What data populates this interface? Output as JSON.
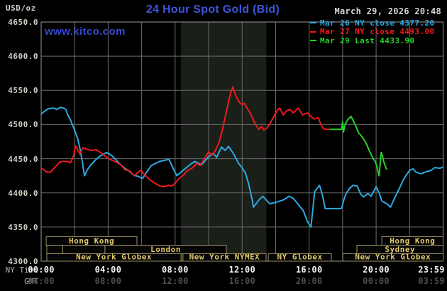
{
  "header": {
    "unit_label": "USD/oz",
    "title": "24 Hour Spot Gold (Bid)",
    "datetime": "March 29, 2026 20:48",
    "watermark": "www.kitco.com"
  },
  "axis_names": {
    "ny": "NY Time",
    "gmt": "GMT"
  },
  "legend": [
    {
      "label": "Mar 26 NY close 4377.20",
      "color": "#2da9e1"
    },
    {
      "label": "Mar 27 NY close 4493.00",
      "color": "#ef1a1a"
    },
    {
      "label": "Mar 29 Last 4433.90",
      "color": "#27d127"
    }
  ],
  "chart_data": {
    "type": "line",
    "title": "24 Hour Spot Gold (Bid)",
    "ylabel": "USD/oz",
    "ylim": [
      4300,
      4650
    ],
    "y_tick_step": 50,
    "y_ticks": [
      "4650.0",
      "4600.0",
      "4550.0",
      "4500.0",
      "4450.0",
      "4400.0",
      "4350.0",
      "4300.0"
    ],
    "x_hours_range": [
      0,
      24
    ],
    "x_ticks_hours": [
      0,
      4,
      8,
      12,
      16,
      20,
      23.983
    ],
    "ny_ticks": [
      "00:00",
      "04:00",
      "08:00",
      "12:00",
      "16:00",
      "20:00",
      "23:59"
    ],
    "gmt_ticks": [
      "04:00",
      "08:00",
      "12:00",
      "16:00",
      "20:00",
      "00:00",
      "03:59"
    ],
    "grid_step_hours": 2,
    "grid_on": true,
    "nymex_band_hours": [
      8.35,
      13.45
    ],
    "band_color": "#1a1f19",
    "grid_color": "#6b6b6b",
    "frame_color": "#9a9a9a",
    "series": [
      {
        "name": "Mar 26 NY close 4377.20",
        "color": "#2da9e1",
        "points": [
          [
            0,
            4515
          ],
          [
            0.17,
            4519
          ],
          [
            0.42,
            4523
          ],
          [
            0.76,
            4524
          ],
          [
            0.93,
            4522
          ],
          [
            1.14,
            4525
          ],
          [
            1.36,
            4524
          ],
          [
            1.48,
            4522
          ],
          [
            1.57,
            4515
          ],
          [
            1.78,
            4505
          ],
          [
            1.99,
            4492
          ],
          [
            2.2,
            4478
          ],
          [
            2.33,
            4463
          ],
          [
            2.46,
            4445
          ],
          [
            2.59,
            4425
          ],
          [
            2.76,
            4434
          ],
          [
            2.97,
            4441
          ],
          [
            3.2,
            4447
          ],
          [
            3.46,
            4453
          ],
          [
            3.9,
            4459
          ],
          [
            4.2,
            4455
          ],
          [
            4.49,
            4448
          ],
          [
            4.66,
            4443
          ],
          [
            5,
            4436
          ],
          [
            5.3,
            4431
          ],
          [
            5.51,
            4426
          ],
          [
            5.81,
            4424
          ],
          [
            6.06,
            4421
          ],
          [
            6.32,
            4431
          ],
          [
            6.57,
            4440
          ],
          [
            7.08,
            4446
          ],
          [
            7.63,
            4449
          ],
          [
            7.88,
            4436
          ],
          [
            8.1,
            4425
          ],
          [
            8.48,
            4433
          ],
          [
            8.82,
            4440
          ],
          [
            9.16,
            4446
          ],
          [
            9.58,
            4441
          ],
          [
            9.96,
            4452
          ],
          [
            10.27,
            4458
          ],
          [
            10.48,
            4452
          ],
          [
            10.77,
            4467
          ],
          [
            10.98,
            4462
          ],
          [
            11.19,
            4468
          ],
          [
            11.49,
            4457
          ],
          [
            11.79,
            4443
          ],
          [
            11.99,
            4437
          ],
          [
            12.2,
            4429
          ],
          [
            12.38,
            4414
          ],
          [
            12.59,
            4391
          ],
          [
            12.68,
            4379
          ],
          [
            13.02,
            4390
          ],
          [
            13.23,
            4395
          ],
          [
            13.65,
            4384
          ],
          [
            14,
            4386
          ],
          [
            14.5,
            4390
          ],
          [
            14.8,
            4395
          ],
          [
            15.05,
            4392
          ],
          [
            15.65,
            4374
          ],
          [
            15.9,
            4358
          ],
          [
            16.11,
            4350
          ],
          [
            16.33,
            4402
          ],
          [
            16.62,
            4411
          ],
          [
            16.8,
            4396
          ],
          [
            16.96,
            4377
          ],
          [
            17.9,
            4377
          ],
          [
            17.95,
            4378
          ],
          [
            18.05,
            4388
          ],
          [
            18.19,
            4398
          ],
          [
            18.4,
            4406
          ],
          [
            18.62,
            4411
          ],
          [
            18.87,
            4410
          ],
          [
            19.08,
            4398
          ],
          [
            19.25,
            4394
          ],
          [
            19.5,
            4399
          ],
          [
            19.7,
            4395
          ],
          [
            20,
            4409
          ],
          [
            20.18,
            4400
          ],
          [
            20.35,
            4388
          ],
          [
            20.65,
            4384
          ],
          [
            20.86,
            4379
          ],
          [
            21.1,
            4392
          ],
          [
            21.3,
            4402
          ],
          [
            21.6,
            4418
          ],
          [
            21.8,
            4426
          ],
          [
            22,
            4433
          ],
          [
            22.2,
            4435
          ],
          [
            22.4,
            4430
          ],
          [
            22.7,
            4428
          ],
          [
            23,
            4431
          ],
          [
            23.3,
            4433
          ],
          [
            23.5,
            4437
          ],
          [
            23.83,
            4436
          ],
          [
            23.98,
            4438
          ]
        ]
      },
      {
        "name": "Mar 27 NY close 4493.00",
        "color": "#ef1a1a",
        "points": [
          [
            0,
            4437
          ],
          [
            0.3,
            4431
          ],
          [
            0.55,
            4430
          ],
          [
            0.8,
            4437
          ],
          [
            1.1,
            4445
          ],
          [
            1.3,
            4446
          ],
          [
            1.55,
            4446
          ],
          [
            1.75,
            4444
          ],
          [
            1.95,
            4455
          ],
          [
            2.05,
            4469
          ],
          [
            2.3,
            4457
          ],
          [
            2.5,
            4466
          ],
          [
            2.7,
            4464
          ],
          [
            3,
            4462
          ],
          [
            3.3,
            4463
          ],
          [
            3.6,
            4458
          ],
          [
            3.9,
            4452
          ],
          [
            4.2,
            4448
          ],
          [
            4.5,
            4445
          ],
          [
            4.8,
            4440
          ],
          [
            5,
            4434
          ],
          [
            5.3,
            4432
          ],
          [
            5.55,
            4425
          ],
          [
            5.94,
            4433
          ],
          [
            6.2,
            4426
          ],
          [
            6.5,
            4419
          ],
          [
            6.8,
            4414
          ],
          [
            7.1,
            4410
          ],
          [
            7.33,
            4409
          ],
          [
            7.6,
            4411
          ],
          [
            7.8,
            4410
          ],
          [
            8,
            4414
          ],
          [
            8.23,
            4421
          ],
          [
            8.5,
            4426
          ],
          [
            8.7,
            4432
          ],
          [
            9,
            4436
          ],
          [
            9.3,
            4443
          ],
          [
            9.5,
            4440
          ],
          [
            9.8,
            4452
          ],
          [
            10,
            4460
          ],
          [
            10.2,
            4455
          ],
          [
            10.4,
            4462
          ],
          [
            10.6,
            4472
          ],
          [
            10.8,
            4490
          ],
          [
            11,
            4512
          ],
          [
            11.2,
            4535
          ],
          [
            11.35,
            4549
          ],
          [
            11.45,
            4555
          ],
          [
            11.55,
            4547
          ],
          [
            11.7,
            4538
          ],
          [
            11.85,
            4532
          ],
          [
            12,
            4529
          ],
          [
            12.15,
            4531
          ],
          [
            12.3,
            4524
          ],
          [
            12.5,
            4516
          ],
          [
            12.7,
            4505
          ],
          [
            12.85,
            4498
          ],
          [
            13,
            4493
          ],
          [
            13.15,
            4497
          ],
          [
            13.3,
            4492
          ],
          [
            13.5,
            4495
          ],
          [
            13.7,
            4503
          ],
          [
            13.9,
            4512
          ],
          [
            14.1,
            4521
          ],
          [
            14.25,
            4524
          ],
          [
            14.45,
            4514
          ],
          [
            14.65,
            4520
          ],
          [
            14.85,
            4522
          ],
          [
            15.05,
            4517
          ],
          [
            15.35,
            4524
          ],
          [
            15.6,
            4514
          ],
          [
            15.9,
            4517
          ],
          [
            16.1,
            4512
          ],
          [
            16.3,
            4508
          ],
          [
            16.55,
            4510
          ],
          [
            16.7,
            4500
          ],
          [
            16.85,
            4494
          ],
          [
            17,
            4493
          ],
          [
            17.25,
            4493
          ]
        ]
      },
      {
        "name": "Mar 29 Last 4433.90",
        "color": "#27d127",
        "points": [
          [
            17.25,
            4493
          ],
          [
            17.95,
            4493
          ],
          [
            18,
            4504
          ],
          [
            18.05,
            4489
          ],
          [
            18.15,
            4500
          ],
          [
            18.3,
            4507
          ],
          [
            18.5,
            4512
          ],
          [
            18.65,
            4505
          ],
          [
            18.8,
            4497
          ],
          [
            18.95,
            4488
          ],
          [
            19.1,
            4484
          ],
          [
            19.3,
            4477
          ],
          [
            19.45,
            4470
          ],
          [
            19.55,
            4464
          ],
          [
            19.7,
            4456
          ],
          [
            19.85,
            4449
          ],
          [
            19.95,
            4446
          ],
          [
            20.05,
            4438
          ],
          [
            20.1,
            4433
          ],
          [
            20.18,
            4425
          ],
          [
            20.3,
            4459
          ],
          [
            20.38,
            4454
          ],
          [
            20.45,
            4446
          ],
          [
            20.52,
            4441
          ],
          [
            20.58,
            4437
          ],
          [
            20.65,
            4434
          ]
        ]
      }
    ],
    "sessions": [
      {
        "row": 0,
        "start": 0.3,
        "end": 5.72,
        "label": "Hong Kong"
      },
      {
        "row": 0,
        "start": 20.34,
        "end": 24,
        "label": "Hong Kong"
      },
      {
        "row": 1,
        "start": 0.34,
        "end": 1.28,
        "label": ""
      },
      {
        "row": 1,
        "start": 1.28,
        "end": 3.81,
        "label": ""
      },
      {
        "row": 1,
        "start": 3.81,
        "end": 11.06,
        "label": "London"
      },
      {
        "row": 1,
        "start": 18.85,
        "end": 24,
        "label": "Sydney"
      },
      {
        "row": 2,
        "start": 0.34,
        "end": 8.35,
        "label": "New York Globex"
      },
      {
        "row": 2,
        "start": 8.47,
        "end": 13.43,
        "label": "New York NYMEX"
      },
      {
        "row": 2,
        "start": 13.56,
        "end": 17.33,
        "label": "NY Globex"
      },
      {
        "row": 2,
        "start": 18.01,
        "end": 24,
        "label": "New York Globex"
      }
    ],
    "session_box_color": "#9c9060",
    "session_label_color": "#e3c96e"
  }
}
